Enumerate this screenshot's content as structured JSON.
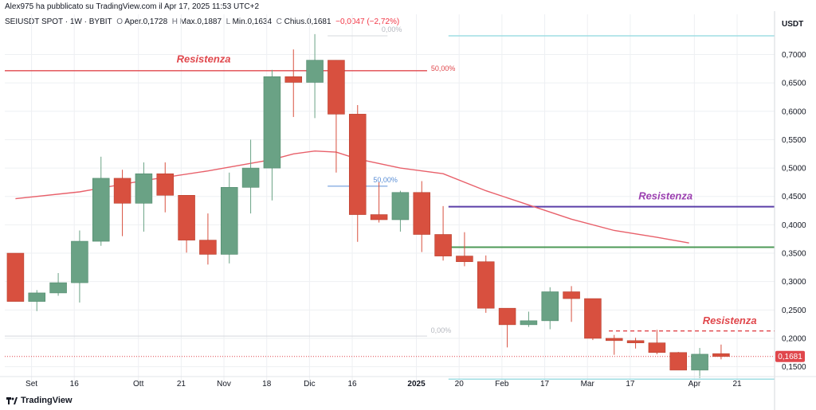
{
  "header": {
    "published": "Alex975 ha pubblicato su TradingView.com il Apr 17, 2025 11:53 UTC+2",
    "symbol": "SEIUSDT SPOT · 1W · BYBIT",
    "open_label": "O",
    "open_value": "Aper.0,1728",
    "high_label": "H",
    "high_value": "Max.0,1887",
    "low_label": "L",
    "low_value": "Min.0,1634",
    "close_label": "C",
    "close_value": "Chius.0,1681",
    "change_value": "−0,0047 (−2,72%)"
  },
  "axis_unit": "USDT",
  "brand": "TradingView",
  "colors": {
    "up": "#6aa285",
    "down": "#d8503f",
    "ma": "#e8606a",
    "resist_red": "#e0474c",
    "resist_purple": "#5b3fa8",
    "green_line": "#4e9a57",
    "cyan_line": "#9fdde3",
    "grid": "#eef0f3",
    "price_tag": "#e0474c"
  },
  "chart_data": {
    "type": "candlestick",
    "title": "SEIUSDT SPOT · 1W · BYBIT",
    "ylim": [
      0.12,
      0.74
    ],
    "xlim": [
      -0.5,
      35.5
    ],
    "y_ticks": [
      0.15,
      0.2,
      0.25,
      0.3,
      0.35,
      0.4,
      0.45,
      0.5,
      0.55,
      0.6,
      0.65,
      0.7
    ],
    "y_tick_labels": [
      "0,1500",
      "0,2000",
      "0,2500",
      "0,3000",
      "0,3500",
      "0,4000",
      "0,4500",
      "0,5000",
      "0,5500",
      "0,6000",
      "0,6500",
      "0,7000"
    ],
    "x_ticks": [
      {
        "i": 0.75,
        "label": "Set"
      },
      {
        "i": 2.75,
        "label": "16"
      },
      {
        "i": 5.75,
        "label": "Ott"
      },
      {
        "i": 7.75,
        "label": "21"
      },
      {
        "i": 9.75,
        "label": "Nov"
      },
      {
        "i": 11.75,
        "label": "18"
      },
      {
        "i": 13.75,
        "label": "Dic"
      },
      {
        "i": 15.75,
        "label": "16"
      },
      {
        "i": 18.75,
        "label": "2025"
      },
      {
        "i": 20.75,
        "label": "20"
      },
      {
        "i": 22.75,
        "label": "Feb"
      },
      {
        "i": 24.75,
        "label": "17"
      },
      {
        "i": 26.75,
        "label": "Mar"
      },
      {
        "i": 28.75,
        "label": "17"
      },
      {
        "i": 31.75,
        "label": "Apr"
      },
      {
        "i": 33.75,
        "label": "21"
      }
    ],
    "candles": [
      {
        "o": 0.35,
        "h": 0.35,
        "l": 0.265,
        "c": 0.265
      },
      {
        "o": 0.265,
        "h": 0.285,
        "l": 0.248,
        "c": 0.28
      },
      {
        "o": 0.28,
        "h": 0.315,
        "l": 0.275,
        "c": 0.298
      },
      {
        "o": 0.298,
        "h": 0.39,
        "l": 0.263,
        "c": 0.371
      },
      {
        "o": 0.371,
        "h": 0.52,
        "l": 0.363,
        "c": 0.482
      },
      {
        "o": 0.482,
        "h": 0.497,
        "l": 0.38,
        "c": 0.438
      },
      {
        "o": 0.438,
        "h": 0.51,
        "l": 0.388,
        "c": 0.49
      },
      {
        "o": 0.49,
        "h": 0.51,
        "l": 0.422,
        "c": 0.452
      },
      {
        "o": 0.452,
        "h": 0.452,
        "l": 0.351,
        "c": 0.373
      },
      {
        "o": 0.373,
        "h": 0.42,
        "l": 0.33,
        "c": 0.348
      },
      {
        "o": 0.348,
        "h": 0.492,
        "l": 0.332,
        "c": 0.466
      },
      {
        "o": 0.466,
        "h": 0.55,
        "l": 0.42,
        "c": 0.5
      },
      {
        "o": 0.5,
        "h": 0.673,
        "l": 0.443,
        "c": 0.661
      },
      {
        "o": 0.661,
        "h": 0.709,
        "l": 0.59,
        "c": 0.651
      },
      {
        "o": 0.651,
        "h": 0.736,
        "l": 0.588,
        "c": 0.69
      },
      {
        "o": 0.69,
        "h": 0.69,
        "l": 0.492,
        "c": 0.595
      },
      {
        "o": 0.595,
        "h": 0.611,
        "l": 0.37,
        "c": 0.418
      },
      {
        "o": 0.418,
        "h": 0.475,
        "l": 0.404,
        "c": 0.409
      },
      {
        "o": 0.409,
        "h": 0.46,
        "l": 0.388,
        "c": 0.457
      },
      {
        "o": 0.457,
        "h": 0.477,
        "l": 0.352,
        "c": 0.383
      },
      {
        "o": 0.383,
        "h": 0.433,
        "l": 0.337,
        "c": 0.345
      },
      {
        "o": 0.345,
        "h": 0.387,
        "l": 0.327,
        "c": 0.335
      },
      {
        "o": 0.335,
        "h": 0.346,
        "l": 0.245,
        "c": 0.253
      },
      {
        "o": 0.253,
        "h": 0.253,
        "l": 0.184,
        "c": 0.224
      },
      {
        "o": 0.224,
        "h": 0.247,
        "l": 0.22,
        "c": 0.231
      },
      {
        "o": 0.231,
        "h": 0.29,
        "l": 0.216,
        "c": 0.282
      },
      {
        "o": 0.282,
        "h": 0.292,
        "l": 0.229,
        "c": 0.27
      },
      {
        "o": 0.27,
        "h": 0.27,
        "l": 0.197,
        "c": 0.2
      },
      {
        "o": 0.2,
        "h": 0.206,
        "l": 0.171,
        "c": 0.196
      },
      {
        "o": 0.196,
        "h": 0.201,
        "l": 0.182,
        "c": 0.192
      },
      {
        "o": 0.192,
        "h": 0.215,
        "l": 0.172,
        "c": 0.175
      },
      {
        "o": 0.175,
        "h": 0.176,
        "l": 0.145,
        "c": 0.144
      },
      {
        "o": 0.144,
        "h": 0.183,
        "l": 0.13,
        "c": 0.172
      },
      {
        "o": 0.173,
        "h": 0.189,
        "l": 0.163,
        "c": 0.168
      }
    ],
    "moving_average": {
      "name": "MA",
      "points": [
        [
          0,
          0.446
        ],
        [
          3,
          0.458
        ],
        [
          6,
          0.478
        ],
        [
          9,
          0.495
        ],
        [
          12,
          0.515
        ],
        [
          13,
          0.525
        ],
        [
          14,
          0.53
        ],
        [
          15,
          0.528
        ],
        [
          16,
          0.516
        ],
        [
          18,
          0.5
        ],
        [
          20,
          0.49
        ],
        [
          22,
          0.46
        ],
        [
          24,
          0.435
        ],
        [
          26,
          0.41
        ],
        [
          28,
          0.39
        ],
        [
          30,
          0.378
        ],
        [
          31.5,
          0.368
        ]
      ]
    },
    "horizontal_lines": [
      {
        "y": 0.6715,
        "x0": -0.5,
        "x1": 19.25,
        "color": "resist_red",
        "width": 1.3,
        "dash": false
      },
      {
        "y": 0.432,
        "x0": 20.25,
        "x1": 35.5,
        "color": "resist_purple",
        "width": 2,
        "dash": false
      },
      {
        "y": 0.3605,
        "x0": 20.25,
        "x1": 35.5,
        "color": "green_line",
        "width": 2,
        "dash": false
      },
      {
        "y": 0.733,
        "x0": 20.25,
        "x1": 35.5,
        "color": "cyan_line",
        "width": 1.5,
        "dash": false
      },
      {
        "y": 0.128,
        "x0": 20.25,
        "x1": 35.5,
        "color": "cyan_line",
        "width": 1.5,
        "dash": false
      },
      {
        "y": 0.213,
        "x0": 27.75,
        "x1": 35.5,
        "color": "resist_red",
        "width": 1.3,
        "dash": true
      },
      {
        "y": 0.204,
        "x0": -0.5,
        "x1": 19.25,
        "color": "#d5d8dd",
        "width": 1,
        "dash": false
      },
      {
        "y": 0.733,
        "x0": 14.6,
        "x1": 17.4,
        "color": "#d5d8dd",
        "width": 1,
        "dash": false
      },
      {
        "y": 0.468,
        "x0": 14.6,
        "x1": 17.4,
        "color": "#5b8fd6",
        "width": 1,
        "dash": false
      },
      {
        "y": 0.1681,
        "x0": -0.5,
        "x1": 35.5,
        "color": "price_tag",
        "width": 1,
        "dash": "dot"
      }
    ],
    "annotations": [
      {
        "text": "Resistenza",
        "x": 8.8,
        "y": 0.686,
        "color": "resist_red",
        "size": 13
      },
      {
        "text": "Resistenza",
        "x": 30.4,
        "y": 0.445,
        "color": "#9b3fb0",
        "size": 13
      },
      {
        "text": "Resistenza",
        "x": 33.4,
        "y": 0.225,
        "color": "resist_red",
        "size": 13
      },
      {
        "text": "50,00%",
        "x": 20.0,
        "y": 0.6715,
        "color": "resist_red",
        "size": 9
      },
      {
        "text": "50,00%",
        "x": 17.3,
        "y": 0.475,
        "color": "#5b8fd6",
        "size": 9
      },
      {
        "text": "0,00%",
        "x": 19.9,
        "y": 0.21,
        "color": "#b5b8bf",
        "size": 9
      },
      {
        "text": "0,00%",
        "x": 17.6,
        "y": 0.74,
        "color": "#b5b8bf",
        "size": 9
      }
    ],
    "last_price_label": "0,1681",
    "last_price": 0.1681
  }
}
